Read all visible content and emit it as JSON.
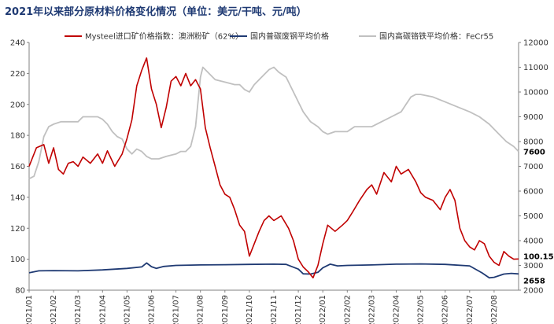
{
  "chart_data": {
    "type": "line",
    "title": "2021年以来部分原材料价格变化情况（单位：美元/干吨、元/吨）",
    "xlabel": "",
    "ylabel_left": "",
    "ylabel_right": "",
    "x_categories": [
      "2021/01",
      "2021/02",
      "2021/03",
      "2021/04",
      "2021/05",
      "2021/06",
      "2021/07",
      "2021/08",
      "2021/09",
      "2021/10",
      "2021/11",
      "2021/12",
      "2022/01",
      "2022/02",
      "2022/03",
      "2022/04",
      "2022/05",
      "2022/06",
      "2022/07",
      "2022/08"
    ],
    "x_range": [
      0,
      20
    ],
    "ylim_left": [
      80,
      240
    ],
    "yticks_left": [
      "80",
      "100",
      "120",
      "140",
      "160",
      "180",
      "200",
      "220",
      "240"
    ],
    "ylim_right": [
      2000,
      12000
    ],
    "yticks_right": [
      "2000",
      "3000",
      "4000",
      "5000",
      "6000",
      "7000",
      "8000",
      "9000",
      "10000",
      "11000",
      "12000"
    ],
    "grid": false,
    "legend_position": "top",
    "series": [
      {
        "name": "Mysteel进口矿价格指数：澳洲粉矿（62%）",
        "axis": "left",
        "color": "#c00000",
        "points": [
          [
            0,
            160
          ],
          [
            0.3,
            172
          ],
          [
            0.6,
            174
          ],
          [
            0.8,
            162
          ],
          [
            1.0,
            172
          ],
          [
            1.2,
            158
          ],
          [
            1.4,
            155
          ],
          [
            1.6,
            162
          ],
          [
            1.8,
            163
          ],
          [
            2.0,
            160
          ],
          [
            2.2,
            166
          ],
          [
            2.5,
            162
          ],
          [
            2.8,
            168
          ],
          [
            3.0,
            162
          ],
          [
            3.2,
            170
          ],
          [
            3.5,
            160
          ],
          [
            3.8,
            168
          ],
          [
            4.0,
            178
          ],
          [
            4.2,
            190
          ],
          [
            4.4,
            212
          ],
          [
            4.6,
            222
          ],
          [
            4.8,
            230
          ],
          [
            5.0,
            210
          ],
          [
            5.2,
            200
          ],
          [
            5.4,
            185
          ],
          [
            5.6,
            198
          ],
          [
            5.8,
            215
          ],
          [
            6.0,
            218
          ],
          [
            6.2,
            212
          ],
          [
            6.4,
            220
          ],
          [
            6.6,
            212
          ],
          [
            6.8,
            216
          ],
          [
            7.0,
            210
          ],
          [
            7.2,
            185
          ],
          [
            7.4,
            172
          ],
          [
            7.6,
            160
          ],
          [
            7.8,
            148
          ],
          [
            8.0,
            142
          ],
          [
            8.2,
            140
          ],
          [
            8.4,
            132
          ],
          [
            8.6,
            122
          ],
          [
            8.8,
            118
          ],
          [
            9.0,
            102
          ],
          [
            9.2,
            110
          ],
          [
            9.4,
            118
          ],
          [
            9.6,
            125
          ],
          [
            9.8,
            128
          ],
          [
            10.0,
            125
          ],
          [
            10.3,
            128
          ],
          [
            10.6,
            120
          ],
          [
            10.8,
            112
          ],
          [
            11.0,
            100
          ],
          [
            11.2,
            95
          ],
          [
            11.4,
            92
          ],
          [
            11.6,
            88
          ],
          [
            11.8,
            96
          ],
          [
            12.0,
            110
          ],
          [
            12.2,
            122
          ],
          [
            12.5,
            118
          ],
          [
            12.8,
            122
          ],
          [
            13.0,
            125
          ],
          [
            13.2,
            130
          ],
          [
            13.5,
            138
          ],
          [
            13.8,
            145
          ],
          [
            14.0,
            148
          ],
          [
            14.2,
            142
          ],
          [
            14.5,
            156
          ],
          [
            14.8,
            150
          ],
          [
            15.0,
            160
          ],
          [
            15.2,
            155
          ],
          [
            15.5,
            158
          ],
          [
            15.8,
            150
          ],
          [
            16.0,
            143
          ],
          [
            16.2,
            140
          ],
          [
            16.5,
            138
          ],
          [
            16.8,
            132
          ],
          [
            17.0,
            140
          ],
          [
            17.2,
            145
          ],
          [
            17.4,
            138
          ],
          [
            17.6,
            120
          ],
          [
            17.8,
            112
          ],
          [
            18.0,
            108
          ],
          [
            18.2,
            106
          ],
          [
            18.4,
            112
          ],
          [
            18.6,
            110
          ],
          [
            18.8,
            102
          ],
          [
            19.0,
            98
          ],
          [
            19.2,
            96
          ],
          [
            19.4,
            105
          ],
          [
            19.6,
            102
          ],
          [
            19.8,
            100
          ],
          [
            20.0,
            100.15
          ]
        ],
        "end_label": "100.15"
      },
      {
        "name": "国内普碳废钢平均价格",
        "axis": "right",
        "color": "#1f3a73",
        "points": [
          [
            0,
            2700
          ],
          [
            0.4,
            2780
          ],
          [
            1.0,
            2790
          ],
          [
            2.0,
            2780
          ],
          [
            3.0,
            2820
          ],
          [
            4.0,
            2880
          ],
          [
            4.6,
            2940
          ],
          [
            4.8,
            3100
          ],
          [
            5.0,
            2950
          ],
          [
            5.2,
            2880
          ],
          [
            5.5,
            2960
          ],
          [
            6.0,
            3000
          ],
          [
            7.0,
            3020
          ],
          [
            8.0,
            3030
          ],
          [
            9.0,
            3040
          ],
          [
            10.0,
            3050
          ],
          [
            10.5,
            3040
          ],
          [
            11.0,
            2850
          ],
          [
            11.2,
            2660
          ],
          [
            11.5,
            2650
          ],
          [
            11.8,
            2720
          ],
          [
            12.0,
            2900
          ],
          [
            12.3,
            3050
          ],
          [
            12.6,
            2980
          ],
          [
            13.0,
            3000
          ],
          [
            14.0,
            3020
          ],
          [
            15.0,
            3050
          ],
          [
            16.0,
            3060
          ],
          [
            17.0,
            3040
          ],
          [
            18.0,
            2980
          ],
          [
            18.5,
            2700
          ],
          [
            18.8,
            2500
          ],
          [
            19.0,
            2520
          ],
          [
            19.4,
            2650
          ],
          [
            19.7,
            2680
          ],
          [
            20.0,
            2658
          ]
        ],
        "end_label": "2658"
      },
      {
        "name": "国内高碳铬铁平均价格：FeCr55",
        "axis": "right",
        "color": "#c0c0c0",
        "points": [
          [
            0,
            6500
          ],
          [
            0.2,
            6600
          ],
          [
            0.4,
            7200
          ],
          [
            0.6,
            8200
          ],
          [
            0.8,
            8600
          ],
          [
            1.0,
            8700
          ],
          [
            1.3,
            8800
          ],
          [
            1.6,
            8800
          ],
          [
            2.0,
            8800
          ],
          [
            2.2,
            9000
          ],
          [
            2.5,
            9000
          ],
          [
            2.8,
            9000
          ],
          [
            3.0,
            8900
          ],
          [
            3.2,
            8700
          ],
          [
            3.4,
            8400
          ],
          [
            3.6,
            8200
          ],
          [
            3.8,
            8100
          ],
          [
            4.0,
            7700
          ],
          [
            4.2,
            7500
          ],
          [
            4.4,
            7700
          ],
          [
            4.6,
            7600
          ],
          [
            4.8,
            7400
          ],
          [
            5.0,
            7300
          ],
          [
            5.3,
            7300
          ],
          [
            5.6,
            7400
          ],
          [
            6.0,
            7500
          ],
          [
            6.2,
            7600
          ],
          [
            6.4,
            7600
          ],
          [
            6.6,
            7800
          ],
          [
            6.8,
            8600
          ],
          [
            7.0,
            10600
          ],
          [
            7.1,
            11000
          ],
          [
            7.3,
            10800
          ],
          [
            7.6,
            10500
          ],
          [
            8.0,
            10400
          ],
          [
            8.4,
            10300
          ],
          [
            8.6,
            10300
          ],
          [
            8.8,
            10100
          ],
          [
            9.0,
            10000
          ],
          [
            9.2,
            10300
          ],
          [
            9.5,
            10600
          ],
          [
            9.8,
            10900
          ],
          [
            10.0,
            11000
          ],
          [
            10.2,
            10800
          ],
          [
            10.5,
            10600
          ],
          [
            10.8,
            10000
          ],
          [
            11.0,
            9600
          ],
          [
            11.2,
            9200
          ],
          [
            11.5,
            8800
          ],
          [
            11.8,
            8600
          ],
          [
            12.0,
            8400
          ],
          [
            12.2,
            8300
          ],
          [
            12.5,
            8400
          ],
          [
            13.0,
            8400
          ],
          [
            13.3,
            8600
          ],
          [
            13.6,
            8600
          ],
          [
            14.0,
            8600
          ],
          [
            14.4,
            8800
          ],
          [
            14.8,
            9000
          ],
          [
            15.2,
            9200
          ],
          [
            15.4,
            9500
          ],
          [
            15.6,
            9800
          ],
          [
            15.8,
            9900
          ],
          [
            16.0,
            9900
          ],
          [
            16.5,
            9800
          ],
          [
            17.0,
            9600
          ],
          [
            17.5,
            9400
          ],
          [
            18.0,
            9200
          ],
          [
            18.4,
            9000
          ],
          [
            18.8,
            8700
          ],
          [
            19.2,
            8300
          ],
          [
            19.5,
            8000
          ],
          [
            19.8,
            7800
          ],
          [
            20.0,
            7600
          ]
        ],
        "end_label": "7600"
      }
    ]
  }
}
